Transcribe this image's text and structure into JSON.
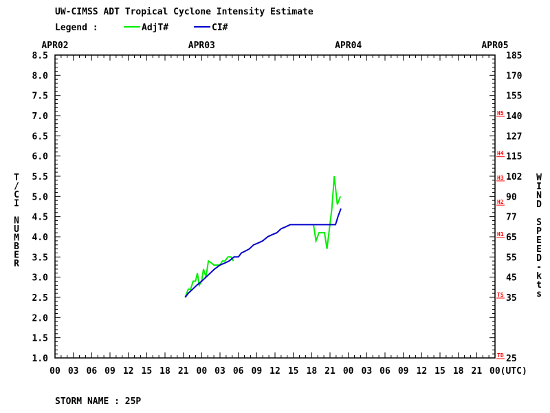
{
  "title": "UW-CIMSS ADT Tropical Cyclone Intensity Estimate",
  "legend_label": "Legend :",
  "storm_name": "STORM NAME : 25P",
  "chart_data": {
    "type": "line",
    "title": "UW-CIMSS ADT Tropical Cyclone Intensity Estimate",
    "xlabel": "(UTC)",
    "ylabel_left": "T/CI NUMBER",
    "ylabel_right": "WIND SPEED-kts",
    "xlim_hours": [
      0,
      72
    ],
    "ylim": [
      1.0,
      8.5
    ],
    "date_labels": [
      {
        "label": "APR02",
        "hour": 0
      },
      {
        "label": "APR03",
        "hour": 24
      },
      {
        "label": "APR04",
        "hour": 48
      },
      {
        "label": "APR05",
        "hour": 72
      }
    ],
    "x_tick_labels": [
      "00",
      "03",
      "06",
      "09",
      "12",
      "15",
      "18",
      "21",
      "00",
      "03",
      "06",
      "09",
      "12",
      "15",
      "18",
      "21",
      "00",
      "03",
      "06",
      "09",
      "12",
      "15",
      "18",
      "21",
      "00(UTC)"
    ],
    "y_ticks_left": [
      "1.0",
      "1.5",
      "2.0",
      "2.5",
      "3.0",
      "3.5",
      "4.0",
      "4.5",
      "5.0",
      "5.5",
      "6.0",
      "6.5",
      "7.0",
      "7.5",
      "8.0",
      "8.5"
    ],
    "y_ticks_right": [
      {
        "label": "25",
        "t": 1.0
      },
      {
        "label": "35",
        "t": 2.5
      },
      {
        "label": "45",
        "t": 3.0
      },
      {
        "label": "55",
        "t": 3.5
      },
      {
        "label": "65",
        "t": 4.0
      },
      {
        "label": "77",
        "t": 4.5
      },
      {
        "label": "90",
        "t": 5.0
      },
      {
        "label": "102",
        "t": 5.5
      },
      {
        "label": "115",
        "t": 6.0
      },
      {
        "label": "127",
        "t": 6.5
      },
      {
        "label": "140",
        "t": 7.0
      },
      {
        "label": "155",
        "t": 7.5
      },
      {
        "label": "170",
        "t": 8.0
      },
      {
        "label": "185",
        "t": 8.5
      }
    ],
    "categories_marks": [
      {
        "label": "TD",
        "t": 1.0
      },
      {
        "label": "TS",
        "t": 2.5
      },
      {
        "label": "H1",
        "t": 4.0
      },
      {
        "label": "H2",
        "t": 4.8
      },
      {
        "label": "H3",
        "t": 5.4
      },
      {
        "label": "H4",
        "t": 6.0
      },
      {
        "label": "H5",
        "t": 7.0
      }
    ],
    "series": [
      {
        "name": "AdjT#",
        "color": "#00ee00",
        "segments": [
          [
            [
              21.3,
              2.5
            ],
            [
              21.8,
              2.7
            ],
            [
              22.2,
              2.7
            ],
            [
              22.6,
              2.9
            ],
            [
              23.0,
              2.9
            ],
            [
              23.3,
              3.1
            ],
            [
              23.6,
              2.8
            ],
            [
              24.0,
              2.9
            ],
            [
              24.3,
              3.2
            ],
            [
              24.7,
              3.0
            ],
            [
              25.1,
              3.4
            ],
            [
              25.6,
              3.35
            ],
            [
              26.0,
              3.3
            ],
            [
              26.5,
              3.3
            ],
            [
              27.0,
              3.3
            ],
            [
              27.4,
              3.4
            ],
            [
              27.8,
              3.4
            ],
            [
              28.3,
              3.5
            ],
            [
              28.8,
              3.5
            ],
            [
              29.2,
              3.4
            ]
          ],
          [
            [
              42.3,
              4.3
            ],
            [
              42.7,
              3.9
            ],
            [
              43.2,
              4.1
            ],
            [
              43.7,
              4.1
            ],
            [
              44.1,
              4.1
            ],
            [
              44.5,
              3.7
            ],
            [
              45.3,
              4.7
            ],
            [
              45.7,
              5.5
            ],
            [
              46.2,
              4.8
            ],
            [
              46.7,
              5.0
            ]
          ]
        ]
      },
      {
        "name": "CI#",
        "color": "#0000cc",
        "points": [
          [
            21.3,
            2.5
          ],
          [
            21.8,
            2.6
          ],
          [
            22.5,
            2.7
          ],
          [
            23.2,
            2.8
          ],
          [
            24.0,
            2.9
          ],
          [
            24.7,
            3.0
          ],
          [
            25.4,
            3.1
          ],
          [
            26.1,
            3.2
          ],
          [
            27.0,
            3.3
          ],
          [
            27.8,
            3.35
          ],
          [
            28.5,
            3.4
          ],
          [
            29.3,
            3.5
          ],
          [
            30.0,
            3.5
          ],
          [
            30.5,
            3.6
          ],
          [
            31.2,
            3.65
          ],
          [
            31.8,
            3.7
          ],
          [
            32.5,
            3.8
          ],
          [
            33.3,
            3.85
          ],
          [
            34.0,
            3.9
          ],
          [
            34.8,
            4.0
          ],
          [
            35.5,
            4.05
          ],
          [
            36.3,
            4.1
          ],
          [
            37.0,
            4.2
          ],
          [
            37.8,
            4.25
          ],
          [
            38.5,
            4.3
          ],
          [
            39.3,
            4.3
          ],
          [
            40.0,
            4.3
          ],
          [
            41.0,
            4.3
          ],
          [
            42.0,
            4.3
          ],
          [
            43.0,
            4.3
          ],
          [
            44.0,
            4.3
          ],
          [
            45.0,
            4.3
          ],
          [
            45.9,
            4.3
          ],
          [
            46.3,
            4.5
          ],
          [
            46.8,
            4.7
          ]
        ]
      }
    ],
    "grid": false,
    "legend_position": "top-left"
  }
}
